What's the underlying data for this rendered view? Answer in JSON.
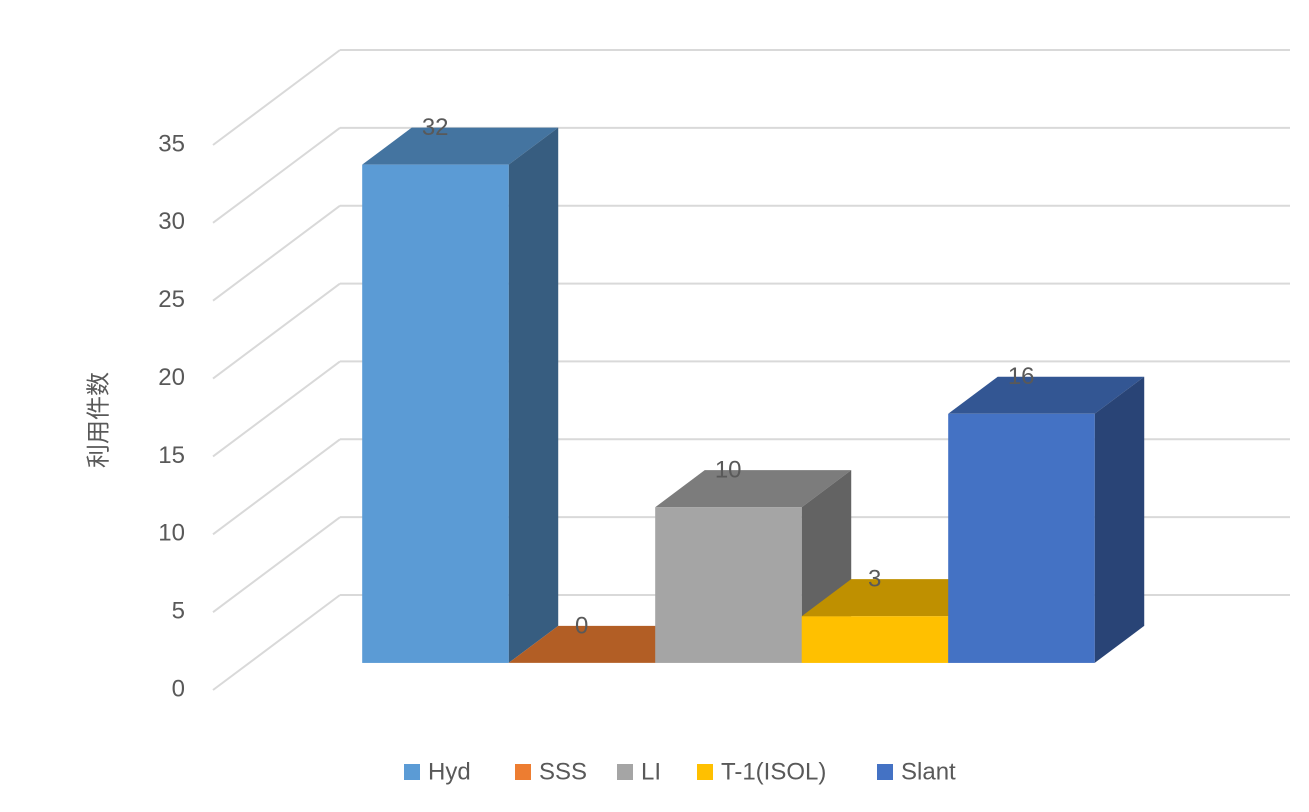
{
  "chart_data": {
    "type": "bar3d",
    "y_label": "利用件数",
    "categories": [
      null
    ],
    "series": [
      {
        "name": "Hyd",
        "color": "#5b9bd5",
        "values": [
          32
        ]
      },
      {
        "name": "SSS",
        "color": "#ed7d31",
        "values": [
          0
        ]
      },
      {
        "name": "LI",
        "color": "#a5a5a5",
        "values": [
          10
        ]
      },
      {
        "name": "T-1(ISOL)",
        "color": "#ffc000",
        "values": [
          3
        ]
      },
      {
        "name": "Slant",
        "color": "#4472c4",
        "values": [
          16
        ]
      }
    ],
    "ylim": [
      0,
      35
    ],
    "yticks": [
      0,
      5,
      10,
      15,
      20,
      25,
      30,
      35
    ],
    "grid": true,
    "legend": "bottom"
  }
}
